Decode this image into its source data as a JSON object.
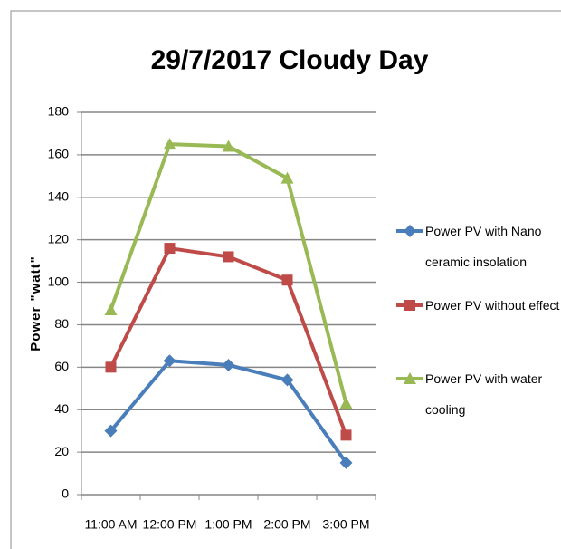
{
  "chart_data": {
    "type": "line",
    "title": "29/7/2017 Cloudy Day",
    "y_label": "Power \"watt\"",
    "categories": [
      "11:00 AM",
      "12:00 PM",
      "1:00 PM",
      "2:00 PM",
      "3:00 PM"
    ],
    "series": [
      {
        "name": "Power PV with Nano ceramic insolation",
        "color": "#4a7ebb",
        "marker": "diamond",
        "values": [
          30,
          63,
          61,
          54,
          15
        ]
      },
      {
        "name": "Power PV without effect",
        "color": "#be4b48",
        "marker": "square",
        "values": [
          60,
          116,
          112,
          101,
          28
        ]
      },
      {
        "name": "Power PV with water cooling",
        "color": "#98b954",
        "marker": "triangle",
        "values": [
          87,
          165,
          164,
          149,
          43
        ]
      }
    ],
    "ylim": [
      0,
      180
    ],
    "yticks": [
      0,
      20,
      40,
      60,
      80,
      100,
      120,
      140,
      160,
      180
    ],
    "grid": true,
    "legend": "right"
  }
}
